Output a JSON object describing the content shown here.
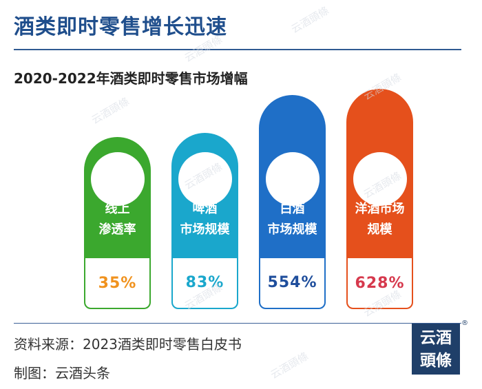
{
  "header": {
    "title": "酒类即时零售增长迅速"
  },
  "chart_data": {
    "type": "bar",
    "title": "2020-2022年酒类即时零售市场增幅",
    "categories": [
      {
        "line1": "线上",
        "line2": "渗透率"
      },
      {
        "line1": "啤酒",
        "line2": "市场规模"
      },
      {
        "line1": "白酒",
        "line2": "市场规模"
      },
      {
        "line1": "洋酒市场",
        "line2": "规模"
      }
    ],
    "values": [
      35,
      83,
      554,
      628
    ],
    "value_labels": [
      "35%",
      "83%",
      "554%",
      "628%"
    ],
    "colors": [
      "#3ba82e",
      "#1aa7cc",
      "#1f6fc7",
      "#e5501c"
    ],
    "label_colors": [
      "#f0921e",
      "#1aa7cc",
      "#1f4e9c",
      "#d6394d"
    ]
  },
  "footer": {
    "source": "资料来源：2023酒类即时零售白皮书",
    "credit": "制图：云酒头条"
  },
  "logo": {
    "line1": "云酒",
    "line2": "頭條",
    "reg": "®"
  },
  "watermark": "云酒頭條"
}
